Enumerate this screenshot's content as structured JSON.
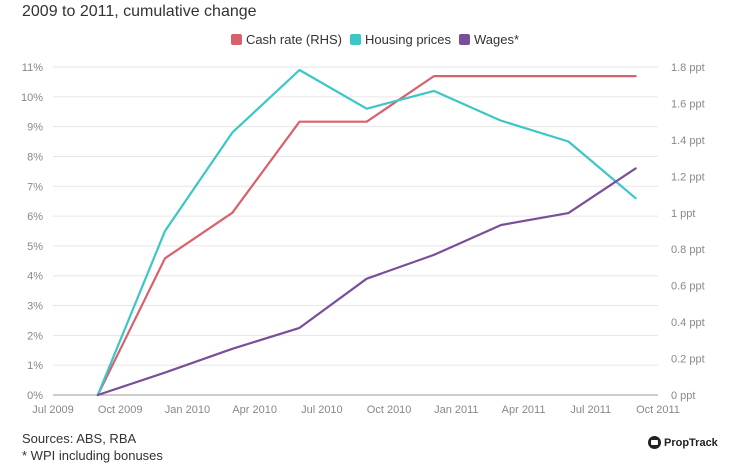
{
  "chart_data": {
    "type": "line",
    "title": "2009 to 2011, cumulative change",
    "x_ticks": [
      "Jul 2009",
      "Oct 2009",
      "Jan 2010",
      "Apr 2010",
      "Jul 2010",
      "Oct 2010",
      "Jan 2011",
      "Apr 2011",
      "Jul 2011",
      "Oct 2011"
    ],
    "x_range": [
      "2009-07",
      "2011-10"
    ],
    "y_left": {
      "ticks": [
        "0%",
        "1%",
        "2%",
        "3%",
        "4%",
        "5%",
        "6%",
        "7%",
        "8%",
        "9%",
        "10%",
        "11%"
      ],
      "range": [
        0,
        11
      ]
    },
    "y_right": {
      "ticks": [
        "0 ppt",
        "0.2 ppt",
        "0.4 ppt",
        "0.6 ppt",
        "0.8 ppt",
        "1 ppt",
        "1.2 ppt",
        "1.4 ppt",
        "1.6 ppt",
        "1.8 ppt"
      ],
      "range": [
        0,
        1.8
      ]
    },
    "grid": "horizontal",
    "legend_position": "top-center",
    "series": [
      {
        "name": "Cash rate (RHS)",
        "axis": "right",
        "color": "#d9606d",
        "x": [
          "2009-09",
          "2009-12",
          "2010-03",
          "2010-06",
          "2010-09",
          "2010-12",
          "2011-03",
          "2011-06",
          "2011-09"
        ],
        "values": [
          0,
          0.75,
          1.0,
          1.5,
          1.5,
          1.75,
          1.75,
          1.75,
          1.75
        ]
      },
      {
        "name": "Housing prices",
        "axis": "left",
        "color": "#3cc6c6",
        "x": [
          "2009-09",
          "2009-12",
          "2010-03",
          "2010-06",
          "2010-09",
          "2010-12",
          "2011-03",
          "2011-06",
          "2011-09"
        ],
        "values": [
          0,
          5.5,
          8.8,
          10.9,
          9.6,
          10.2,
          9.2,
          8.5,
          6.6
        ]
      },
      {
        "name": "Wages*",
        "axis": "left",
        "color": "#7a4f9a",
        "x": [
          "2009-09",
          "2009-12",
          "2010-03",
          "2010-06",
          "2010-09",
          "2010-12",
          "2011-03",
          "2011-06",
          "2011-09"
        ],
        "values": [
          0,
          0.75,
          1.55,
          2.25,
          3.9,
          4.7,
          5.7,
          6.1,
          7.6
        ]
      }
    ]
  },
  "footer": {
    "sources": "Sources: ABS, RBA",
    "note": "* WPI including bonuses"
  },
  "logo": {
    "text": "PropTrack"
  }
}
